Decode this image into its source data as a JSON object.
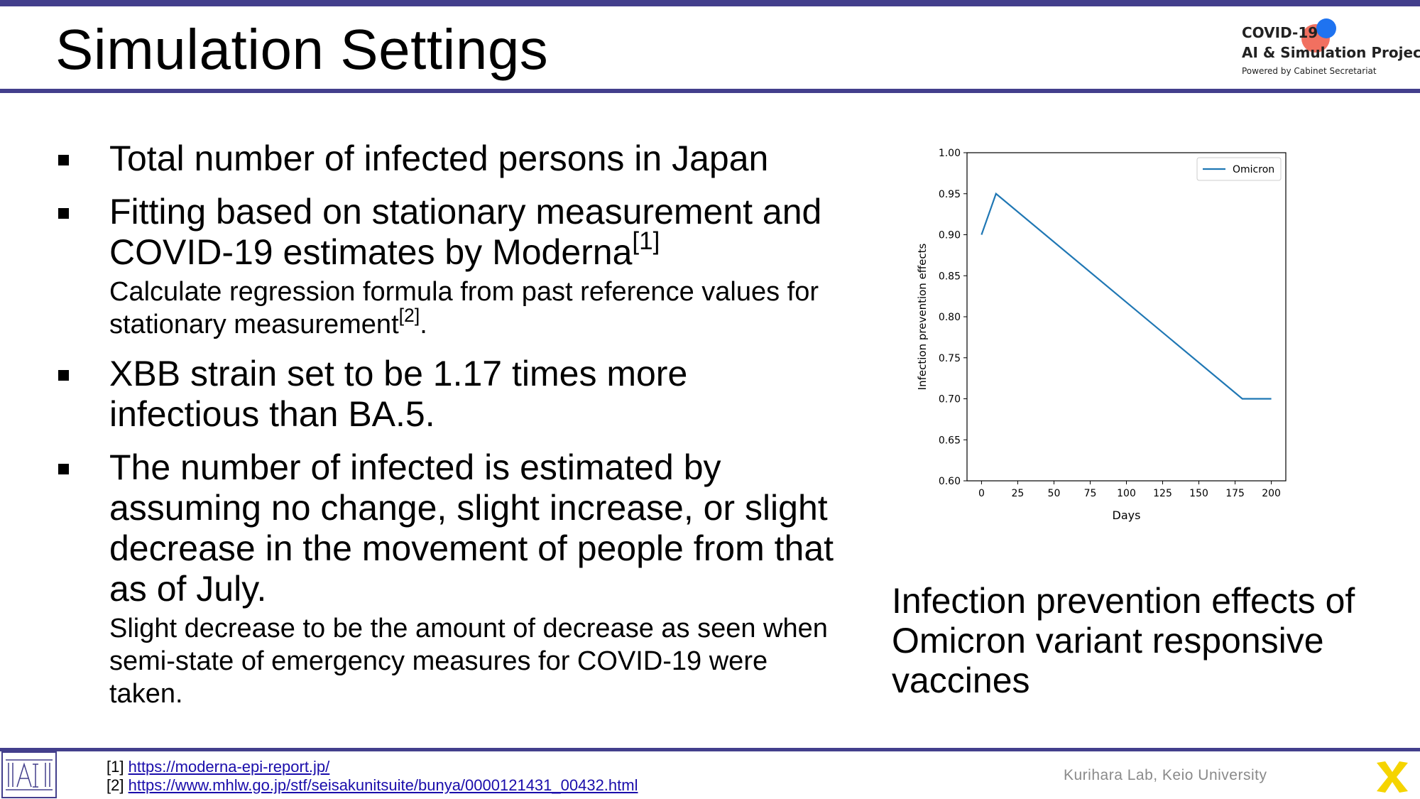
{
  "header": {
    "title": "Simulation Settings",
    "logo": {
      "line1": "COVID-19",
      "line2": "AI & Simulation Project",
      "line3": "Powered by Cabinet Secretariat"
    }
  },
  "bullets": [
    {
      "text": "Total number of infected persons in Japan"
    },
    {
      "text": "Fitting based on stationary measurement and COVID-19 estimates by Moderna",
      "ref": "[1]",
      "sub": "Calculate regression formula from past reference values for stationary measurement",
      "sub_ref": "[2]",
      "sub_tail": "."
    },
    {
      "text": "XBB strain set to be 1.17 times more infectious than BA.5."
    },
    {
      "text": "The number of infected is estimated by assuming no change, slight increase, or slight decrease in the movement of people from that as of July.",
      "sub": "Slight decrease to be the amount of decrease as seen when semi-state of emergency measures for COVID-19 were taken."
    }
  ],
  "chart_caption": "Infection prevention effects of Omicron variant responsive vaccines",
  "chart_data": {
    "type": "line",
    "xlabel": "Days",
    "ylabel": "Infection prevention effects",
    "xlim": [
      -10,
      210
    ],
    "ylim": [
      0.6,
      1.0
    ],
    "xticks": [
      0,
      25,
      50,
      75,
      100,
      125,
      150,
      175,
      200
    ],
    "yticks": [
      0.6,
      0.65,
      0.7,
      0.75,
      0.8,
      0.85,
      0.9,
      0.95,
      1.0
    ],
    "ytick_labels": [
      "0.60",
      "0.65",
      "0.70",
      "0.75",
      "0.80",
      "0.85",
      "0.90",
      "0.95",
      "1.00"
    ],
    "legend_position": "top-right",
    "series": [
      {
        "name": "Omicron",
        "color": "#1f77b4",
        "x": [
          0,
          10,
          180,
          200
        ],
        "y": [
          0.9,
          0.95,
          0.7,
          0.7
        ]
      }
    ]
  },
  "references": [
    {
      "num": "[1]",
      "url": "https://moderna-epi-report.jp/"
    },
    {
      "num": "[2]",
      "url": "https://www.mhlw.go.jp/stf/seisakunitsuite/bunya/0000121431_00432.html"
    }
  ],
  "footer": {
    "credit": "Kurihara Lab, Keio University"
  },
  "colors": {
    "accent": "#433f8c",
    "series": "#1f77b4",
    "logo_red": "#f0614f",
    "logo_blue": "#1f73f0",
    "x_logo": "#f5d400"
  }
}
